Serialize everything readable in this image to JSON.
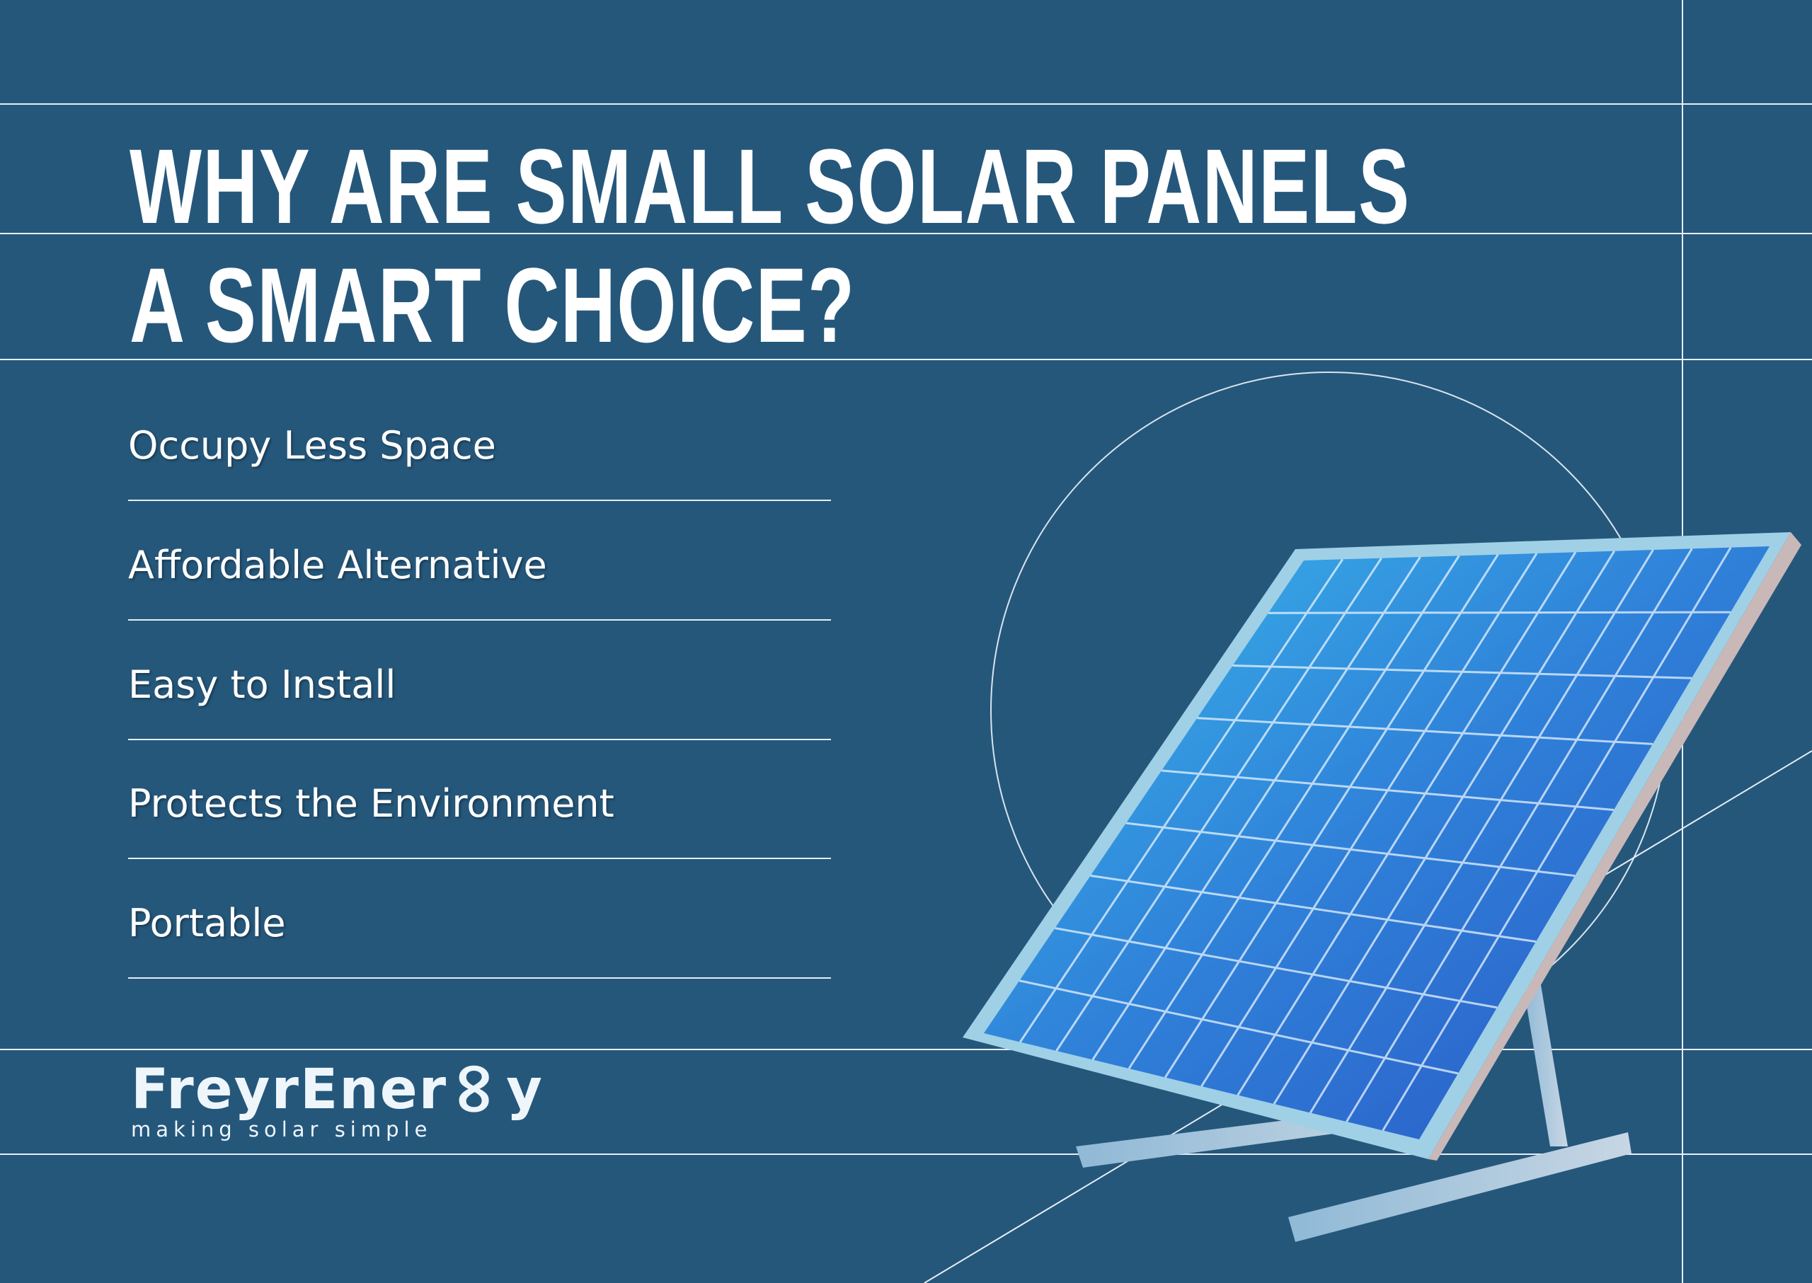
{
  "title": {
    "line1": "WHY ARE SMALL SOLAR PANELS",
    "line2": "A SMART CHOICE?"
  },
  "benefits": [
    {
      "label": "Occupy Less Space"
    },
    {
      "label": "Affordable Alternative"
    },
    {
      "label": "Easy to Install"
    },
    {
      "label": "Protects the Environment"
    },
    {
      "label": "Portable"
    }
  ],
  "logo": {
    "brand": "FreyrEner",
    "brand_end": "y",
    "tagline": "making solar simple"
  },
  "colors": {
    "background": "#25577b",
    "lines": "#e6eef5",
    "panel": "#2f7fd8"
  },
  "image": {
    "subject": "solar-panel-on-stand"
  }
}
